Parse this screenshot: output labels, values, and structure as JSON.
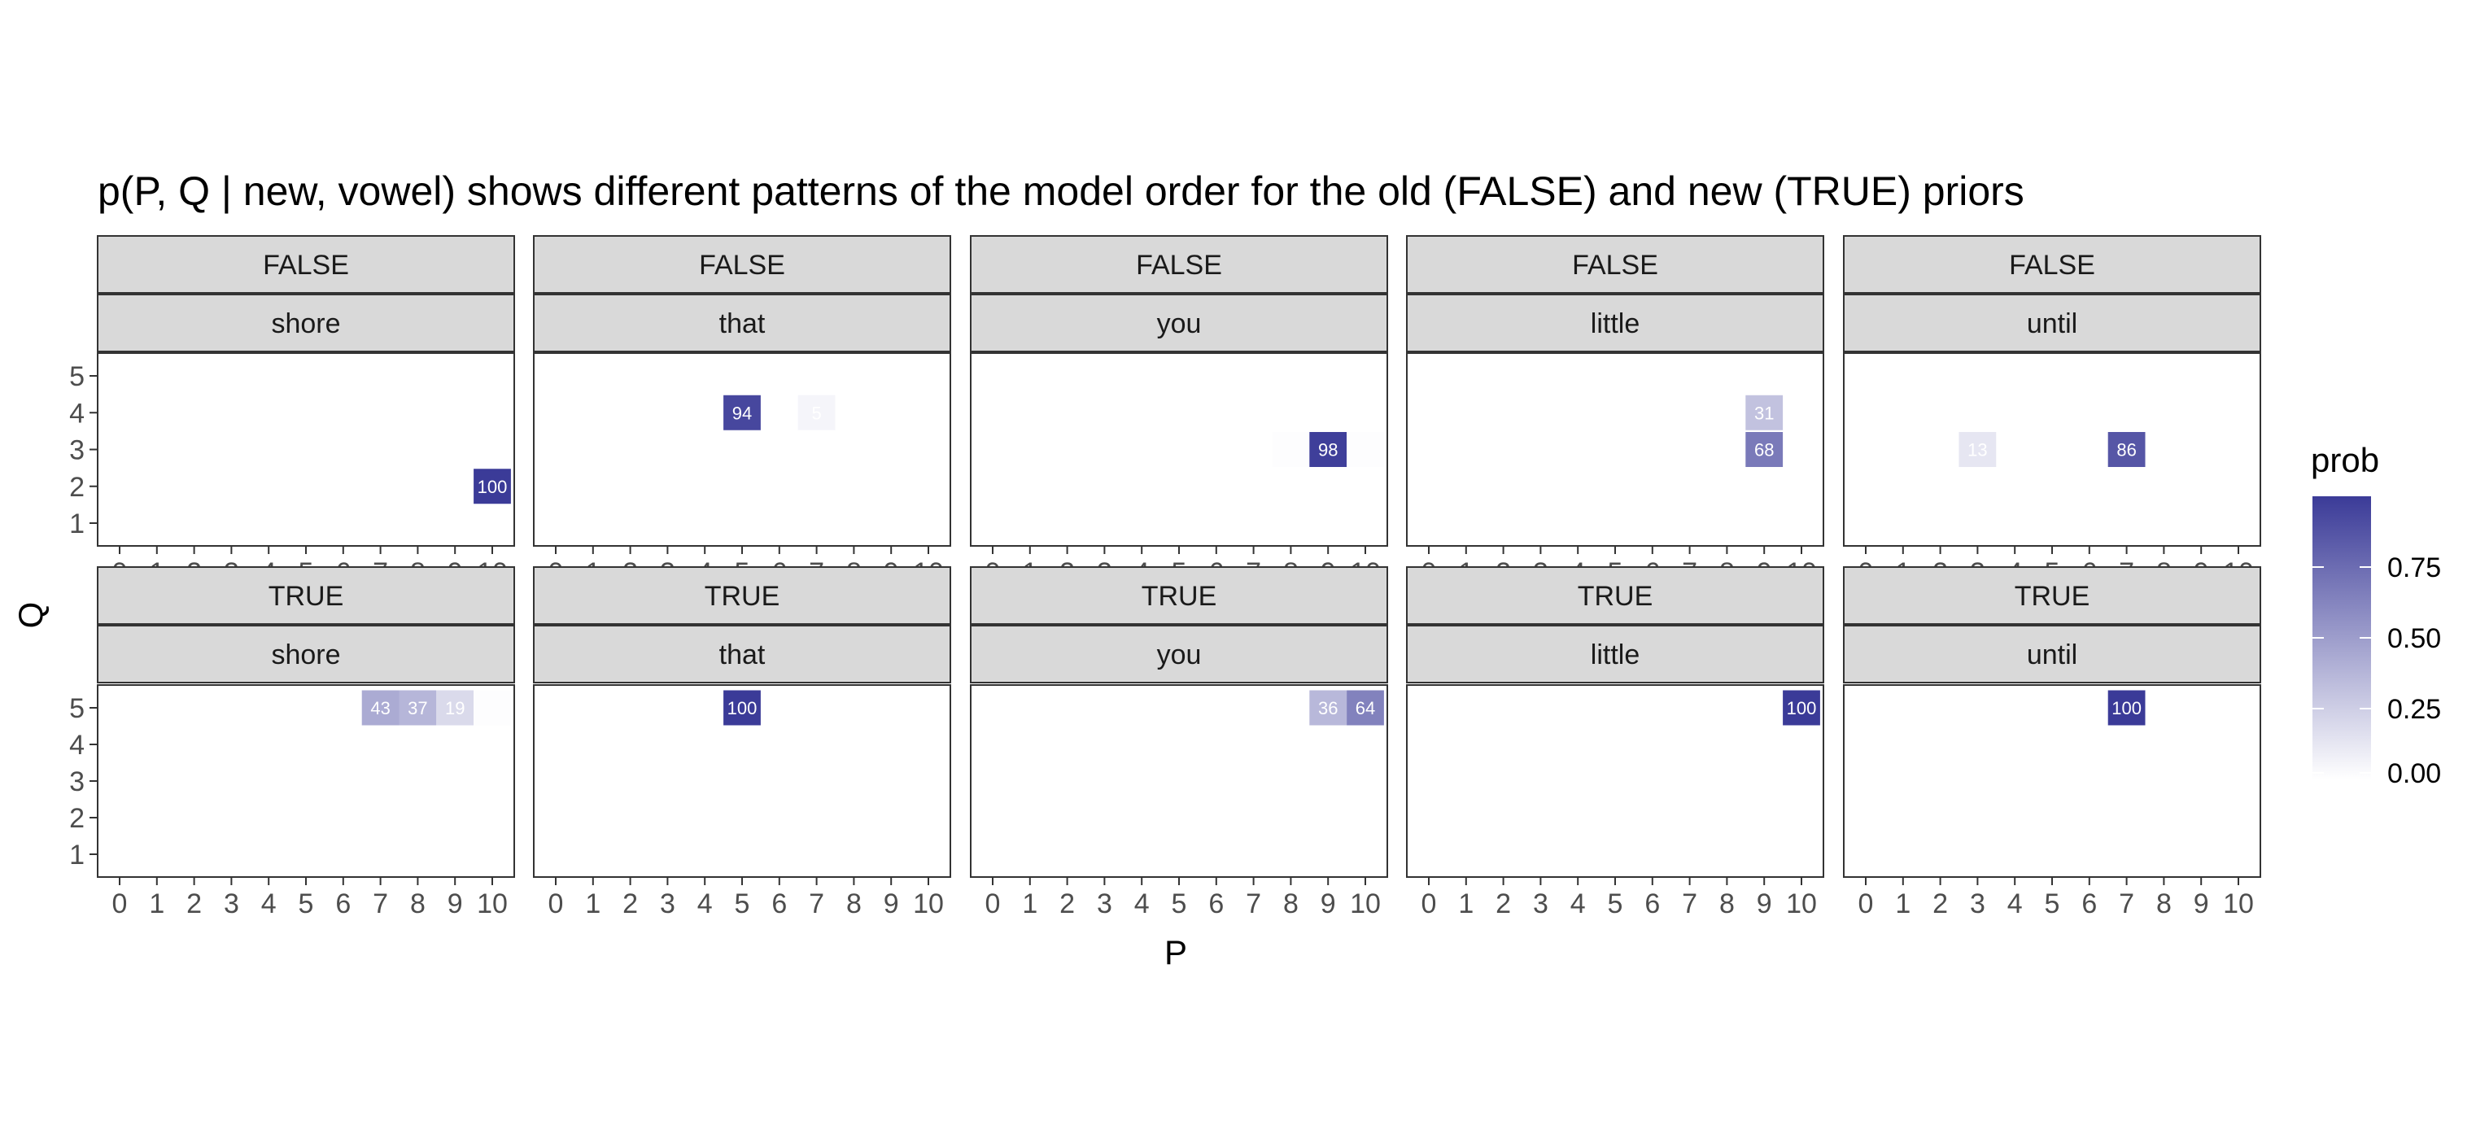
{
  "chart_data": {
    "type": "heatmap",
    "title": "p(P, Q | new, vowel) shows different patterns of the model order for the old (FALSE) and new (TRUE) priors",
    "xlabel": "P",
    "ylabel": "Q",
    "x_ticks": [
      "0",
      "1",
      "2",
      "3",
      "4",
      "5",
      "6",
      "7",
      "8",
      "9",
      "10"
    ],
    "y_ticks": [
      "1",
      "2",
      "3",
      "4",
      "5"
    ],
    "xlim": [
      0,
      10
    ],
    "ylim": [
      1,
      5
    ],
    "row_facets": [
      "FALSE",
      "TRUE"
    ],
    "col_facets": [
      "shore",
      "that",
      "you",
      "little",
      "until"
    ],
    "legend": {
      "title": "prob",
      "ticks": [
        "0.00",
        "0.25",
        "0.50",
        "0.75"
      ],
      "range": [
        0,
        1
      ],
      "low_color": "#ffffff",
      "high_color": "#3b3b98",
      "placement": "right"
    },
    "panels": [
      {
        "row": "FALSE",
        "col": "shore",
        "cells": [
          {
            "P": 10,
            "Q": 2,
            "prob": 1.0,
            "label": "100"
          }
        ]
      },
      {
        "row": "FALSE",
        "col": "that",
        "cells": [
          {
            "P": 5,
            "Q": 4,
            "prob": 0.94,
            "label": "94"
          },
          {
            "P": 7,
            "Q": 4,
            "prob": 0.05,
            "label": "5"
          }
        ]
      },
      {
        "row": "FALSE",
        "col": "you",
        "cells": [
          {
            "P": 8,
            "Q": 3,
            "prob": 0.01,
            "label": ""
          },
          {
            "P": 9,
            "Q": 3,
            "prob": 0.98,
            "label": "98"
          },
          {
            "P": 10,
            "Q": 3,
            "prob": 0.01,
            "label": ""
          }
        ]
      },
      {
        "row": "FALSE",
        "col": "little",
        "cells": [
          {
            "P": 9,
            "Q": 4,
            "prob": 0.31,
            "label": "31"
          },
          {
            "P": 9,
            "Q": 3,
            "prob": 0.68,
            "label": "68"
          }
        ]
      },
      {
        "row": "FALSE",
        "col": "until",
        "cells": [
          {
            "P": 3,
            "Q": 3,
            "prob": 0.13,
            "label": "13"
          },
          {
            "P": 7,
            "Q": 3,
            "prob": 0.86,
            "label": "86"
          }
        ]
      },
      {
        "row": "TRUE",
        "col": "shore",
        "cells": [
          {
            "P": 7,
            "Q": 5,
            "prob": 0.43,
            "label": "43"
          },
          {
            "P": 8,
            "Q": 5,
            "prob": 0.37,
            "label": "37"
          },
          {
            "P": 9,
            "Q": 5,
            "prob": 0.19,
            "label": "19"
          },
          {
            "P": 10,
            "Q": 5,
            "prob": 0.01,
            "label": ""
          }
        ]
      },
      {
        "row": "TRUE",
        "col": "that",
        "cells": [
          {
            "P": 5,
            "Q": 5,
            "prob": 1.0,
            "label": "100"
          }
        ]
      },
      {
        "row": "TRUE",
        "col": "you",
        "cells": [
          {
            "P": 9,
            "Q": 5,
            "prob": 0.36,
            "label": "36"
          },
          {
            "P": 10,
            "Q": 5,
            "prob": 0.64,
            "label": "64"
          }
        ]
      },
      {
        "row": "TRUE",
        "col": "little",
        "cells": [
          {
            "P": 10,
            "Q": 5,
            "prob": 1.0,
            "label": "100"
          }
        ]
      },
      {
        "row": "TRUE",
        "col": "until",
        "cells": [
          {
            "P": 7,
            "Q": 5,
            "prob": 1.0,
            "label": "100"
          }
        ]
      }
    ]
  }
}
